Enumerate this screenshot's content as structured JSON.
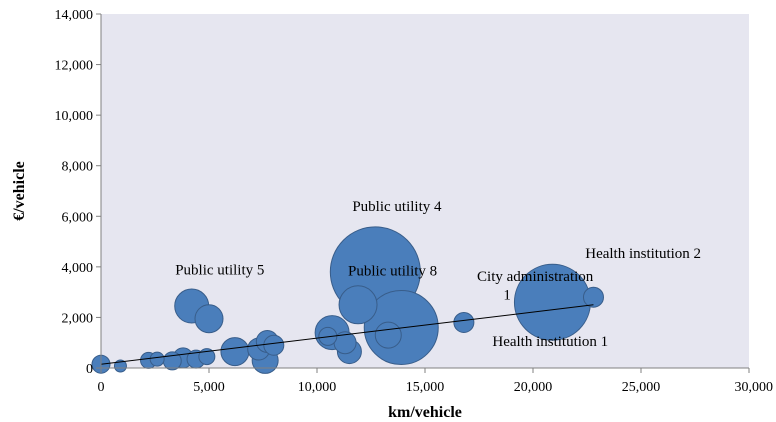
{
  "chart_data": {
    "type": "scatter",
    "subtype": "bubble",
    "title": "",
    "xlabel": "km/vehicle",
    "ylabel": "€/vehicle",
    "xlim": [
      0,
      30000
    ],
    "ylim": [
      0,
      14000
    ],
    "x_ticks": [
      0,
      5000,
      10000,
      15000,
      20000,
      25000,
      30000
    ],
    "x_tick_labels": [
      "0",
      "5,000",
      "10,000",
      "15,000",
      "20,000",
      "25,000",
      "30,000"
    ],
    "y_ticks": [
      0,
      2000,
      4000,
      6000,
      8000,
      10000,
      12000,
      14000
    ],
    "y_tick_labels": [
      "0",
      "2,000",
      "4,000",
      "6,000",
      "8,000",
      "10,000",
      "12,000",
      "14,000"
    ],
    "grid": false,
    "legend": "none",
    "colors": {
      "bubble_fill": "#4a7ebb",
      "bubble_edge": "#385d8a",
      "plot_area": "#e6e6f0",
      "axis": "#808080",
      "trendline": "#000000"
    },
    "points": [
      {
        "x": 0,
        "y": 150,
        "r": 9
      },
      {
        "x": 900,
        "y": 80,
        "r": 6
      },
      {
        "x": 2200,
        "y": 300,
        "r": 8
      },
      {
        "x": 2600,
        "y": 350,
        "r": 7
      },
      {
        "x": 3300,
        "y": 280,
        "r": 9
      },
      {
        "x": 3800,
        "y": 400,
        "r": 10
      },
      {
        "x": 4400,
        "y": 350,
        "r": 9
      },
      {
        "x": 4200,
        "y": 2450,
        "r": 17
      },
      {
        "x": 4900,
        "y": 450,
        "r": 8
      },
      {
        "x": 5000,
        "y": 1950,
        "r": 14
      },
      {
        "x": 6200,
        "y": 650,
        "r": 14
      },
      {
        "x": 7300,
        "y": 750,
        "r": 11
      },
      {
        "x": 7600,
        "y": 300,
        "r": 13
      },
      {
        "x": 7700,
        "y": 1050,
        "r": 11
      },
      {
        "x": 8000,
        "y": 900,
        "r": 10
      },
      {
        "x": 10700,
        "y": 1400,
        "r": 17
      },
      {
        "x": 11300,
        "y": 1000,
        "r": 11
      },
      {
        "x": 11500,
        "y": 650,
        "r": 12
      },
      {
        "x": 12700,
        "y": 3800,
        "r": 45
      },
      {
        "x": 11900,
        "y": 2500,
        "r": 19
      },
      {
        "x": 13300,
        "y": 1300,
        "r": 13
      },
      {
        "x": 13900,
        "y": 1600,
        "r": 37
      },
      {
        "x": 10500,
        "y": 1250,
        "r": 9
      },
      {
        "x": 16800,
        "y": 1800,
        "r": 10
      },
      {
        "x": 20900,
        "y": 2600,
        "r": 38
      },
      {
        "x": 22800,
        "y": 2800,
        "r": 10
      }
    ],
    "trendline": {
      "x": [
        0,
        22800
      ],
      "y": [
        150,
        2500
      ]
    },
    "annotations": [
      {
        "text": "Public utility 5",
        "x": 5500,
        "y": 3700
      },
      {
        "text": "Public utility 4",
        "x": 13700,
        "y": 6200
      },
      {
        "text": "Public utility 8",
        "x": 13500,
        "y": 3650
      },
      {
        "text": "City administration",
        "x": 20100,
        "y": 3450
      },
      {
        "text": "1",
        "x": 18800,
        "y": 2700
      },
      {
        "text": "Health institution 2",
        "x": 25100,
        "y": 4350
      },
      {
        "text": "Health institution 1",
        "x": 20800,
        "y": 870
      }
    ]
  }
}
